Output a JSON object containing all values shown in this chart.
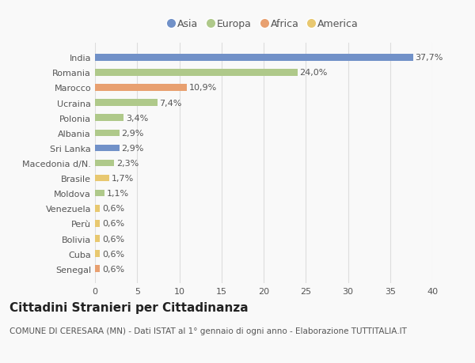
{
  "categories": [
    "Senegal",
    "Cuba",
    "Bolivia",
    "Perù",
    "Venezuela",
    "Moldova",
    "Brasile",
    "Macedonia d/N.",
    "Sri Lanka",
    "Albania",
    "Polonia",
    "Ucraina",
    "Marocco",
    "Romania",
    "India"
  ],
  "values": [
    0.6,
    0.6,
    0.6,
    0.6,
    0.6,
    1.1,
    1.7,
    2.3,
    2.9,
    2.9,
    3.4,
    7.4,
    10.9,
    24.0,
    37.7
  ],
  "colors": [
    "#e8a070",
    "#e8c870",
    "#e8c870",
    "#e8c870",
    "#e8c870",
    "#afc98a",
    "#e8c870",
    "#afc98a",
    "#7191c8",
    "#afc98a",
    "#afc98a",
    "#afc98a",
    "#e8a070",
    "#afc98a",
    "#7191c8"
  ],
  "labels": [
    "0,6%",
    "0,6%",
    "0,6%",
    "0,6%",
    "0,6%",
    "1,1%",
    "1,7%",
    "2,3%",
    "2,9%",
    "2,9%",
    "3,4%",
    "7,4%",
    "10,9%",
    "24,0%",
    "37,7%"
  ],
  "legend_labels": [
    "Asia",
    "Europa",
    "Africa",
    "America"
  ],
  "legend_colors": [
    "#7191c8",
    "#afc98a",
    "#e8a070",
    "#e8c870"
  ],
  "xlim": [
    0,
    40
  ],
  "xticks": [
    0,
    5,
    10,
    15,
    20,
    25,
    30,
    35,
    40
  ],
  "title": "Cittadini Stranieri per Cittadinanza",
  "subtitle": "COMUNE DI CERESARA (MN) - Dati ISTAT al 1° gennaio di ogni anno - Elaborazione TUTTITALIA.IT",
  "bg_color": "#f9f9f9",
  "bar_height": 0.45,
  "grid_color": "#dddddd",
  "title_fontsize": 11,
  "subtitle_fontsize": 7.5,
  "label_fontsize": 8,
  "tick_fontsize": 8,
  "legend_fontsize": 9
}
